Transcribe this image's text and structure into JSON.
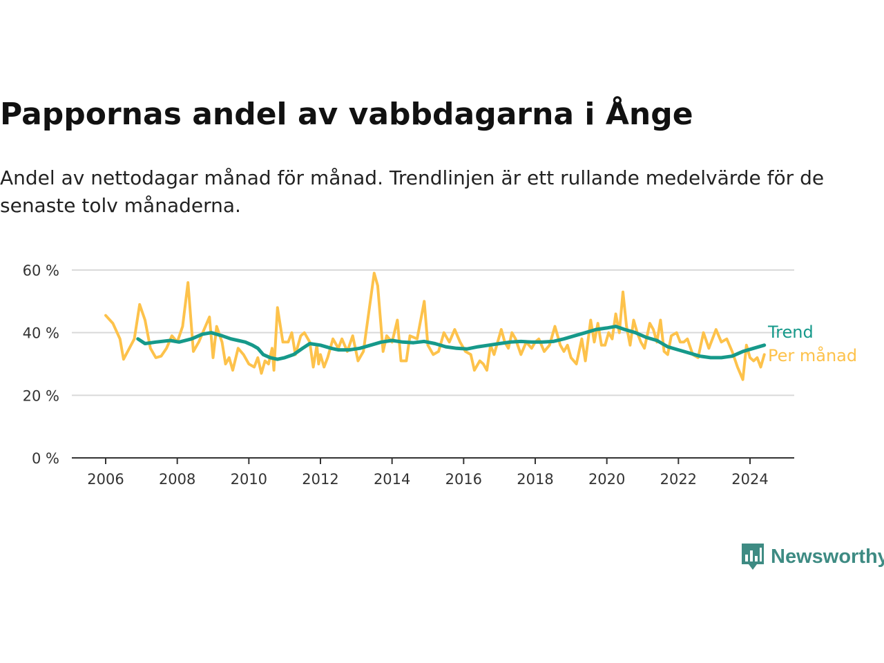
{
  "title": "Pappornas andel av vabbdagarna i Ånge",
  "subtitle": "Andel av nettodagar månad för månad. Trendlinjen är ett rullande medelvärde för de senaste tolv månaderna.",
  "brand": {
    "name": "Newsworthy"
  },
  "colors": {
    "trend": "#16998a",
    "monthly": "#fdc24b",
    "grid": "#d9d9d9",
    "axis": "#333333",
    "brand": "#3e8b83"
  },
  "chart_data": {
    "type": "line",
    "title": "Pappornas andel av vabbdagarna i Ånge",
    "xlabel": "",
    "ylabel": "",
    "xlim": [
      2006,
      2024.4
    ],
    "ylim": [
      0,
      60
    ],
    "x_ticks": [
      2006,
      2008,
      2010,
      2012,
      2014,
      2016,
      2018,
      2020,
      2022,
      2024
    ],
    "y_ticks": [
      0,
      20,
      40,
      60
    ],
    "y_tick_labels": [
      "0 %",
      "20 %",
      "40 %",
      "60 %"
    ],
    "grid": true,
    "legend": "direct labels at right end of lines",
    "series": [
      {
        "name": "Per månad",
        "color": "#fdc24b",
        "points": [
          [
            2006.0,
            45.5
          ],
          [
            2006.2,
            43
          ],
          [
            2006.4,
            38
          ],
          [
            2006.5,
            31.5
          ],
          [
            2006.8,
            38
          ],
          [
            2006.95,
            49
          ],
          [
            2007.1,
            44
          ],
          [
            2007.25,
            35
          ],
          [
            2007.4,
            32
          ],
          [
            2007.55,
            32.5
          ],
          [
            2007.7,
            35
          ],
          [
            2007.85,
            39
          ],
          [
            2008.0,
            37
          ],
          [
            2008.15,
            42
          ],
          [
            2008.3,
            56
          ],
          [
            2008.45,
            34
          ],
          [
            2008.6,
            37
          ],
          [
            2008.75,
            41
          ],
          [
            2008.9,
            45
          ],
          [
            2009.0,
            32
          ],
          [
            2009.1,
            42
          ],
          [
            2009.25,
            37
          ],
          [
            2009.35,
            30
          ],
          [
            2009.45,
            32
          ],
          [
            2009.55,
            28
          ],
          [
            2009.7,
            35
          ],
          [
            2009.85,
            33
          ],
          [
            2010.0,
            30
          ],
          [
            2010.15,
            29
          ],
          [
            2010.25,
            32
          ],
          [
            2010.35,
            27
          ],
          [
            2010.45,
            31
          ],
          [
            2010.55,
            30
          ],
          [
            2010.65,
            35
          ],
          [
            2010.7,
            28
          ],
          [
            2010.8,
            48
          ],
          [
            2010.95,
            37
          ],
          [
            2011.1,
            37
          ],
          [
            2011.2,
            40
          ],
          [
            2011.3,
            33
          ],
          [
            2011.45,
            39
          ],
          [
            2011.55,
            40
          ],
          [
            2011.7,
            37
          ],
          [
            2011.8,
            29
          ],
          [
            2011.9,
            36
          ],
          [
            2011.95,
            30
          ],
          [
            2012.0,
            33
          ],
          [
            2012.1,
            29
          ],
          [
            2012.2,
            32
          ],
          [
            2012.35,
            38
          ],
          [
            2012.5,
            35
          ],
          [
            2012.6,
            38
          ],
          [
            2012.75,
            34
          ],
          [
            2012.9,
            39
          ],
          [
            2013.05,
            31
          ],
          [
            2013.2,
            34
          ],
          [
            2013.5,
            59
          ],
          [
            2013.6,
            55
          ],
          [
            2013.75,
            34
          ],
          [
            2013.85,
            39
          ],
          [
            2014.0,
            37
          ],
          [
            2014.15,
            44
          ],
          [
            2014.25,
            31
          ],
          [
            2014.4,
            31
          ],
          [
            2014.5,
            39
          ],
          [
            2014.7,
            38
          ],
          [
            2014.9,
            50
          ],
          [
            2015.0,
            36
          ],
          [
            2015.15,
            33
          ],
          [
            2015.3,
            34
          ],
          [
            2015.45,
            40
          ],
          [
            2015.6,
            37
          ],
          [
            2015.75,
            41
          ],
          [
            2015.9,
            37
          ],
          [
            2016.05,
            34
          ],
          [
            2016.2,
            33
          ],
          [
            2016.3,
            28
          ],
          [
            2016.45,
            31
          ],
          [
            2016.55,
            30
          ],
          [
            2016.65,
            28
          ],
          [
            2016.75,
            36
          ],
          [
            2016.85,
            33
          ],
          [
            2016.95,
            37
          ],
          [
            2017.05,
            41
          ],
          [
            2017.15,
            37
          ],
          [
            2017.25,
            35
          ],
          [
            2017.35,
            40
          ],
          [
            2017.45,
            38
          ],
          [
            2017.6,
            33
          ],
          [
            2017.75,
            37
          ],
          [
            2017.9,
            35
          ],
          [
            2018.0,
            37
          ],
          [
            2018.1,
            38
          ],
          [
            2018.25,
            34
          ],
          [
            2018.4,
            36
          ],
          [
            2018.55,
            42
          ],
          [
            2018.7,
            36
          ],
          [
            2018.8,
            34
          ],
          [
            2018.9,
            36
          ],
          [
            2019.0,
            32
          ],
          [
            2019.15,
            30
          ],
          [
            2019.3,
            38
          ],
          [
            2019.4,
            31
          ],
          [
            2019.55,
            44
          ],
          [
            2019.65,
            37
          ],
          [
            2019.75,
            43
          ],
          [
            2019.85,
            36
          ],
          [
            2019.95,
            36
          ],
          [
            2020.05,
            40
          ],
          [
            2020.15,
            38
          ],
          [
            2020.25,
            46
          ],
          [
            2020.35,
            40
          ],
          [
            2020.45,
            53
          ],
          [
            2020.55,
            42
          ],
          [
            2020.65,
            36
          ],
          [
            2020.75,
            44
          ],
          [
            2020.85,
            40
          ],
          [
            2020.95,
            37
          ],
          [
            2021.05,
            35
          ],
          [
            2021.2,
            43
          ],
          [
            2021.3,
            41
          ],
          [
            2021.4,
            37
          ],
          [
            2021.5,
            44
          ],
          [
            2021.6,
            34
          ],
          [
            2021.7,
            33
          ],
          [
            2021.8,
            39
          ],
          [
            2021.95,
            40
          ],
          [
            2022.05,
            37
          ],
          [
            2022.15,
            37
          ],
          [
            2022.25,
            38
          ],
          [
            2022.4,
            33
          ],
          [
            2022.55,
            32
          ],
          [
            2022.7,
            40
          ],
          [
            2022.85,
            35
          ],
          [
            2022.95,
            38
          ],
          [
            2023.05,
            41
          ],
          [
            2023.2,
            37
          ],
          [
            2023.35,
            38
          ],
          [
            2023.5,
            34
          ],
          [
            2023.65,
            29
          ],
          [
            2023.8,
            25
          ],
          [
            2023.9,
            36
          ],
          [
            2024.0,
            32
          ],
          [
            2024.1,
            31
          ],
          [
            2024.2,
            32
          ],
          [
            2024.3,
            29
          ],
          [
            2024.4,
            33
          ]
        ]
      },
      {
        "name": "Trend",
        "color": "#16998a",
        "points": [
          [
            2006.9,
            38
          ],
          [
            2007.1,
            36.5
          ],
          [
            2007.4,
            37
          ],
          [
            2007.8,
            37.5
          ],
          [
            2008.05,
            37
          ],
          [
            2008.4,
            38
          ],
          [
            2008.7,
            39.5
          ],
          [
            2008.95,
            40
          ],
          [
            2009.25,
            39
          ],
          [
            2009.5,
            38
          ],
          [
            2009.7,
            37.5
          ],
          [
            2009.9,
            37
          ],
          [
            2010.1,
            36
          ],
          [
            2010.25,
            35
          ],
          [
            2010.4,
            33
          ],
          [
            2010.6,
            32
          ],
          [
            2010.8,
            31.5
          ],
          [
            2011.0,
            32
          ],
          [
            2011.25,
            33
          ],
          [
            2011.5,
            35
          ],
          [
            2011.7,
            36.5
          ],
          [
            2012.0,
            36
          ],
          [
            2012.3,
            35
          ],
          [
            2012.5,
            34.5
          ],
          [
            2012.8,
            34.5
          ],
          [
            2013.1,
            35
          ],
          [
            2013.4,
            36
          ],
          [
            2013.7,
            37
          ],
          [
            2014.0,
            37.5
          ],
          [
            2014.3,
            37
          ],
          [
            2014.6,
            36.8
          ],
          [
            2014.9,
            37.2
          ],
          [
            2015.2,
            36.5
          ],
          [
            2015.5,
            35.5
          ],
          [
            2015.8,
            35
          ],
          [
            2016.1,
            34.8
          ],
          [
            2016.4,
            35.5
          ],
          [
            2016.7,
            36
          ],
          [
            2017.0,
            36.5
          ],
          [
            2017.3,
            37
          ],
          [
            2017.6,
            37.2
          ],
          [
            2017.9,
            37
          ],
          [
            2018.2,
            37
          ],
          [
            2018.5,
            37.2
          ],
          [
            2018.8,
            38
          ],
          [
            2019.1,
            39
          ],
          [
            2019.4,
            40
          ],
          [
            2019.7,
            41
          ],
          [
            2020.0,
            41.5
          ],
          [
            2020.25,
            42
          ],
          [
            2020.5,
            41
          ],
          [
            2020.8,
            40
          ],
          [
            2021.1,
            38.5
          ],
          [
            2021.4,
            37.5
          ],
          [
            2021.7,
            35.5
          ],
          [
            2022.0,
            34.5
          ],
          [
            2022.3,
            33.5
          ],
          [
            2022.6,
            32.5
          ],
          [
            2022.9,
            32
          ],
          [
            2023.2,
            32
          ],
          [
            2023.5,
            32.5
          ],
          [
            2023.8,
            34
          ],
          [
            2024.1,
            35
          ],
          [
            2024.4,
            36
          ]
        ]
      }
    ]
  }
}
